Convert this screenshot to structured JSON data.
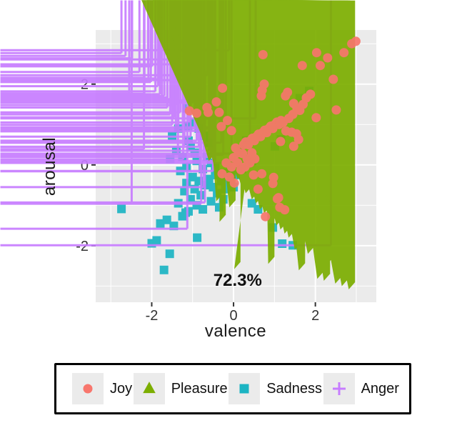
{
  "chart_data": {
    "type": "scatter",
    "title": "",
    "xlabel": "valence",
    "ylabel": "arousal",
    "xlim": [
      -3.37,
      3.49
    ],
    "ylim": [
      -3.4,
      3.34
    ],
    "xticks": [
      -2,
      0,
      2
    ],
    "yticks": [
      -2,
      0,
      2
    ],
    "xticks_minor": [
      -3,
      -1,
      1,
      3
    ],
    "yticks_minor": [
      -3,
      -1,
      1,
      3
    ],
    "grid": true,
    "panel_color": "#ebebeb",
    "grid_color": "#ffffff",
    "tick_label_color": "#333333",
    "annotation": {
      "text": "72.3%",
      "x": 0.1,
      "y": -2.85
    },
    "legend_position": "bottom",
    "series": [
      {
        "name": "Sadness",
        "marker": "square",
        "color": "#1CB4C3",
        "size": 12,
        "points": [
          [
            1.85,
            1.83
          ],
          [
            1.62,
            1.65
          ],
          [
            1.16,
            0.63
          ],
          [
            1.01,
            0.46
          ],
          [
            0.31,
            0.6
          ],
          [
            -1.14,
            1.4
          ],
          [
            -0.95,
            1.05
          ],
          [
            -1.11,
            0.96
          ],
          [
            -0.85,
            0.9
          ],
          [
            -1.35,
            0.9
          ],
          [
            -1.5,
            0.72
          ],
          [
            -1.4,
            0.35
          ],
          [
            -1.55,
            0.15
          ],
          [
            -1.1,
            0.6
          ],
          [
            -1.05,
            0.45
          ],
          [
            -0.95,
            0.3
          ],
          [
            -1.25,
            0.2
          ],
          [
            -0.9,
            0.1
          ],
          [
            -1.15,
            -0.05
          ],
          [
            -0.75,
            -0.1
          ],
          [
            -1.3,
            -0.15
          ],
          [
            -1.0,
            -0.3
          ],
          [
            -0.85,
            -0.4
          ],
          [
            -1.15,
            -0.45
          ],
          [
            -0.7,
            -0.5
          ],
          [
            -0.95,
            -0.6
          ],
          [
            -1.2,
            -0.65
          ],
          [
            -0.8,
            -0.75
          ],
          [
            -1.05,
            -0.85
          ],
          [
            -0.9,
            -1.0
          ],
          [
            -0.75,
            -1.1
          ],
          [
            -1.1,
            -1.15
          ],
          [
            -0.6,
            -0.35
          ],
          [
            -0.5,
            -0.55
          ],
          [
            -0.4,
            -0.7
          ],
          [
            -0.55,
            -0.9
          ],
          [
            -0.45,
            -0.25
          ],
          [
            -0.3,
            -0.4
          ],
          [
            -0.2,
            -0.6
          ],
          [
            -0.35,
            -1.05
          ],
          [
            -0.25,
            -0.85
          ],
          [
            -0.1,
            -0.45
          ],
          [
            0.0,
            -0.55
          ],
          [
            -0.15,
            -0.2
          ],
          [
            0.05,
            -0.25
          ],
          [
            0.2,
            -0.1
          ],
          [
            0.3,
            0.2
          ],
          [
            0.45,
            0.1
          ],
          [
            0.15,
            0.35
          ],
          [
            -0.65,
            0.2
          ],
          [
            -0.55,
            0.05
          ],
          [
            -0.45,
            -0.05
          ],
          [
            -0.62,
            0.55
          ],
          [
            -0.72,
            0.72
          ],
          [
            -1.35,
            -0.95
          ],
          [
            -1.25,
            -1.27
          ],
          [
            -1.17,
            -1.18
          ],
          [
            -1.46,
            -1.51
          ],
          [
            -1.63,
            -1.36
          ],
          [
            -1.79,
            -1.45
          ],
          [
            -1.88,
            -1.87
          ],
          [
            -2.0,
            -1.94
          ],
          [
            -1.56,
            -2.2
          ],
          [
            -1.7,
            -2.6
          ],
          [
            -2.74,
            -1.09
          ],
          [
            -0.89,
            -1.8
          ],
          [
            0.6,
            -1.1
          ],
          [
            0.96,
            -1.55
          ],
          [
            1.19,
            -1.95
          ],
          [
            1.45,
            -1.99
          ],
          [
            0.45,
            -0.95
          ]
        ]
      },
      {
        "name": "Anger",
        "marker": "plus",
        "color": "#C77CFF",
        "size": 17,
        "points": [
          [
            -2.74,
            2.77
          ],
          [
            -2.64,
            2.7
          ],
          [
            -2.48,
            2.64
          ],
          [
            -2.3,
            2.3
          ],
          [
            -2.09,
            2.49
          ],
          [
            -1.99,
            2.44
          ],
          [
            -1.44,
            2.61
          ],
          [
            -1.41,
            2.49
          ],
          [
            -2.18,
            2.16
          ],
          [
            -2.08,
            2.11
          ],
          [
            -2.02,
            2.05
          ],
          [
            -1.91,
            2.14
          ],
          [
            -1.85,
            1.95
          ],
          [
            -1.77,
            2.12
          ],
          [
            -1.02,
            2.1
          ],
          [
            -0.64,
            2.22
          ],
          [
            -0.11,
            2.84
          ],
          [
            -2.55,
            1.77
          ],
          [
            -2.18,
            1.76
          ],
          [
            -1.91,
            1.82
          ],
          [
            -1.8,
            1.75
          ],
          [
            -1.69,
            1.71
          ],
          [
            -1.62,
            1.67
          ],
          [
            -1.51,
            1.63
          ],
          [
            -1.41,
            1.57
          ],
          [
            -1.39,
            1.48
          ],
          [
            -1.17,
            1.6
          ],
          [
            -1.09,
            1.57
          ],
          [
            -1.0,
            1.54
          ],
          [
            -1.75,
            1.55
          ],
          [
            -1.62,
            1.42
          ],
          [
            -1.55,
            1.25
          ],
          [
            -1.45,
            1.18
          ],
          [
            -1.3,
            1.3
          ],
          [
            -1.1,
            1.05
          ],
          [
            -1.5,
            0.99
          ],
          [
            -1.41,
            0.89
          ],
          [
            -1.35,
            0.86
          ],
          [
            -1.24,
            0.83
          ],
          [
            -0.95,
            0.92
          ],
          [
            -0.74,
            0.84
          ],
          [
            -0.34,
            0.93
          ],
          [
            -0.19,
            0.9
          ],
          [
            -2.19,
            0.39
          ],
          [
            -1.36,
            0.2
          ],
          [
            -1.23,
            0.14
          ],
          [
            -1.05,
            0.7
          ],
          [
            -0.9,
            0.6
          ],
          [
            -0.85,
            0.45
          ],
          [
            -0.7,
            0.55
          ],
          [
            -0.6,
            0.35
          ],
          [
            -0.55,
            0.2
          ],
          [
            -0.45,
            0.1
          ],
          [
            -0.72,
            0.05
          ],
          [
            -0.5,
            -0.15
          ],
          [
            -0.82,
            -0.16
          ],
          [
            -0.73,
            -0.55
          ],
          [
            -0.7,
            -0.93
          ],
          [
            -0.79,
            -0.96
          ],
          [
            -2.49,
            -0.95
          ],
          [
            -1.13,
            -1.58
          ],
          [
            0.54,
            1.15
          ],
          [
            0.4,
            0.28
          ],
          [
            2.38,
            -1.99
          ],
          [
            -0.3,
            0.55
          ],
          [
            -0.25,
            0.25
          ],
          [
            -1.2,
            0.45
          ],
          [
            -0.05,
            0.05
          ]
        ]
      },
      {
        "name": "Pleasure",
        "marker": "triangle",
        "color": "#7CAE00",
        "size": 16,
        "points": [
          [
            -0.56,
            0.58
          ],
          [
            -0.35,
            0.45
          ],
          [
            -0.2,
            0.3
          ],
          [
            -0.45,
            0.1
          ],
          [
            -0.3,
            -0.1
          ],
          [
            -0.15,
            0.05
          ],
          [
            0.0,
            0.15
          ],
          [
            0.1,
            0.3
          ],
          [
            0.2,
            0.05
          ],
          [
            0.3,
            -0.05
          ],
          [
            0.1,
            -0.25
          ],
          [
            0.25,
            -0.35
          ],
          [
            0.4,
            -0.2
          ],
          [
            0.5,
            -0.35
          ],
          [
            0.35,
            -0.55
          ],
          [
            0.55,
            -0.5
          ],
          [
            0.45,
            -0.7
          ],
          [
            0.65,
            -0.65
          ],
          [
            0.6,
            -0.85
          ],
          [
            0.75,
            -0.75
          ],
          [
            0.7,
            -0.95
          ],
          [
            0.85,
            -0.9
          ],
          [
            0.8,
            -1.1
          ],
          [
            0.95,
            -1.0
          ],
          [
            0.9,
            -1.2
          ],
          [
            1.05,
            -1.1
          ],
          [
            1.0,
            -1.3
          ],
          [
            1.15,
            -1.2
          ],
          [
            1.1,
            -1.4
          ],
          [
            1.25,
            -1.3
          ],
          [
            1.2,
            -1.5
          ],
          [
            1.35,
            -1.4
          ],
          [
            1.3,
            -1.6
          ],
          [
            1.45,
            -1.28
          ],
          [
            1.55,
            -1.35
          ],
          [
            1.62,
            -1.45
          ],
          [
            1.72,
            -1.38
          ],
          [
            1.8,
            -1.52
          ],
          [
            1.9,
            -1.6
          ],
          [
            2.0,
            -1.7
          ],
          [
            2.1,
            -1.62
          ],
          [
            1.4,
            -1.7
          ],
          [
            1.5,
            -1.8
          ],
          [
            1.65,
            -1.72
          ],
          [
            1.85,
            -1.95
          ],
          [
            1.97,
            -2.2
          ],
          [
            2.2,
            -2.29
          ],
          [
            2.62,
            -2.15
          ],
          [
            1.75,
            -2.61
          ],
          [
            2.32,
            -2.55
          ],
          [
            2.72,
            -2.64
          ],
          [
            2.2,
            -2.82
          ],
          [
            2.36,
            -2.87
          ],
          [
            2.64,
            -2.94
          ],
          [
            2.8,
            -3.0
          ],
          [
            2.97,
            -3.08
          ],
          [
            2.45,
            -2.45
          ],
          [
            2.55,
            -2.4
          ],
          [
            2.06,
            -1.0
          ],
          [
            2.53,
            -1.02
          ],
          [
            2.85,
            -1.6
          ],
          [
            1.3,
            0.05
          ],
          [
            1.25,
            -0.34
          ],
          [
            1.28,
            -0.52
          ],
          [
            2.03,
            -0.99
          ],
          [
            1.0,
            -2.45
          ],
          [
            0.17,
            -2.58
          ],
          [
            1.65,
            -2.1
          ],
          [
            0.43,
            0.1
          ],
          [
            1.22,
            0.16
          ],
          [
            -0.27,
            -0.9
          ],
          [
            -0.19,
            -1.41
          ],
          [
            0.55,
            0.05
          ],
          [
            0.65,
            -0.15
          ],
          [
            0.05,
            -1.05
          ]
        ]
      },
      {
        "name": "Joy",
        "marker": "circle",
        "color": "#F8766D",
        "size": 13,
        "points": [
          [
            0.25,
            0.5
          ],
          [
            0.3,
            0.57
          ],
          [
            0.36,
            0.5
          ],
          [
            0.41,
            0.6
          ],
          [
            0.46,
            0.66
          ],
          [
            0.51,
            0.6
          ],
          [
            0.56,
            0.7
          ],
          [
            0.61,
            0.76
          ],
          [
            0.66,
            0.7
          ],
          [
            0.71,
            0.8
          ],
          [
            0.76,
            0.86
          ],
          [
            0.81,
            0.8
          ],
          [
            0.86,
            0.9
          ],
          [
            0.91,
            0.96
          ],
          [
            0.96,
            0.9
          ],
          [
            1.01,
            1.0
          ],
          [
            1.06,
            1.06
          ],
          [
            1.11,
            1.0
          ],
          [
            1.16,
            1.1
          ],
          [
            1.21,
            1.05
          ],
          [
            1.28,
            0.84
          ],
          [
            1.42,
            0.81
          ],
          [
            1.54,
            0.77
          ],
          [
            1.59,
            0.63
          ],
          [
            1.47,
            0.46
          ],
          [
            1.15,
            0.58
          ],
          [
            1.35,
            1.15
          ],
          [
            1.45,
            1.25
          ],
          [
            1.55,
            1.4
          ],
          [
            1.62,
            1.35
          ],
          [
            1.7,
            1.5
          ],
          [
            1.78,
            1.66
          ],
          [
            1.88,
            1.75
          ],
          [
            0.72,
            2.73
          ],
          [
            0.75,
            2.0
          ],
          [
            0.7,
            1.85
          ],
          [
            0.68,
            1.71
          ],
          [
            1.68,
            2.46
          ],
          [
            2.12,
            2.46
          ],
          [
            2.03,
            2.78
          ],
          [
            2.3,
            2.65
          ],
          [
            2.7,
            2.78
          ],
          [
            2.89,
            3.0
          ],
          [
            2.99,
            3.06
          ],
          [
            2.44,
            2.12
          ],
          [
            2.51,
            1.36
          ],
          [
            2.02,
            1.17
          ],
          [
            1.13,
            1.05
          ],
          [
            1.27,
            1.71
          ],
          [
            1.32,
            1.8
          ],
          [
            1.47,
            1.52
          ],
          [
            -1.08,
            1.34
          ],
          [
            -0.9,
            1.28
          ],
          [
            -0.65,
            1.42
          ],
          [
            -0.62,
            1.3
          ],
          [
            -0.35,
            1.3
          ],
          [
            -0.42,
            1.56
          ],
          [
            -0.27,
            1.9
          ],
          [
            -0.15,
            1.1
          ],
          [
            -0.3,
            0.95
          ],
          [
            -0.05,
            0.85
          ],
          [
            0.05,
            0.42
          ],
          [
            0.12,
            0.3
          ],
          [
            0.0,
            0.18
          ],
          [
            0.1,
            0.05
          ],
          [
            -0.05,
            -0.05
          ],
          [
            0.18,
            -0.12
          ],
          [
            0.28,
            -0.05
          ],
          [
            0.33,
            0.15
          ],
          [
            0.45,
            0.3
          ],
          [
            0.4,
            0.05
          ],
          [
            0.52,
            0.15
          ],
          [
            0.22,
            0.28
          ],
          [
            -0.18,
            0.05
          ],
          [
            -0.28,
            -0.22
          ],
          [
            -0.1,
            -0.3
          ],
          [
            0.02,
            -0.45
          ],
          [
            0.49,
            -0.25
          ],
          [
            0.69,
            -0.22
          ],
          [
            0.96,
            -0.46
          ],
          [
            1.1,
            -0.81
          ],
          [
            1.25,
            -1.11
          ],
          [
            0.98,
            -0.31
          ],
          [
            1.07,
            -0.84
          ],
          [
            1.13,
            -1.05
          ],
          [
            0.6,
            -0.6
          ],
          [
            0.78,
            -1.28
          ]
        ]
      }
    ]
  },
  "legend": {
    "entries": [
      {
        "label": "Joy",
        "marker": "circle",
        "color": "#F8766D"
      },
      {
        "label": "Pleasure",
        "marker": "triangle",
        "color": "#7CAE00"
      },
      {
        "label": "Sadness",
        "marker": "square",
        "color": "#1CB4C3"
      },
      {
        "label": "Anger",
        "marker": "plus",
        "color": "#C77CFF"
      }
    ]
  }
}
